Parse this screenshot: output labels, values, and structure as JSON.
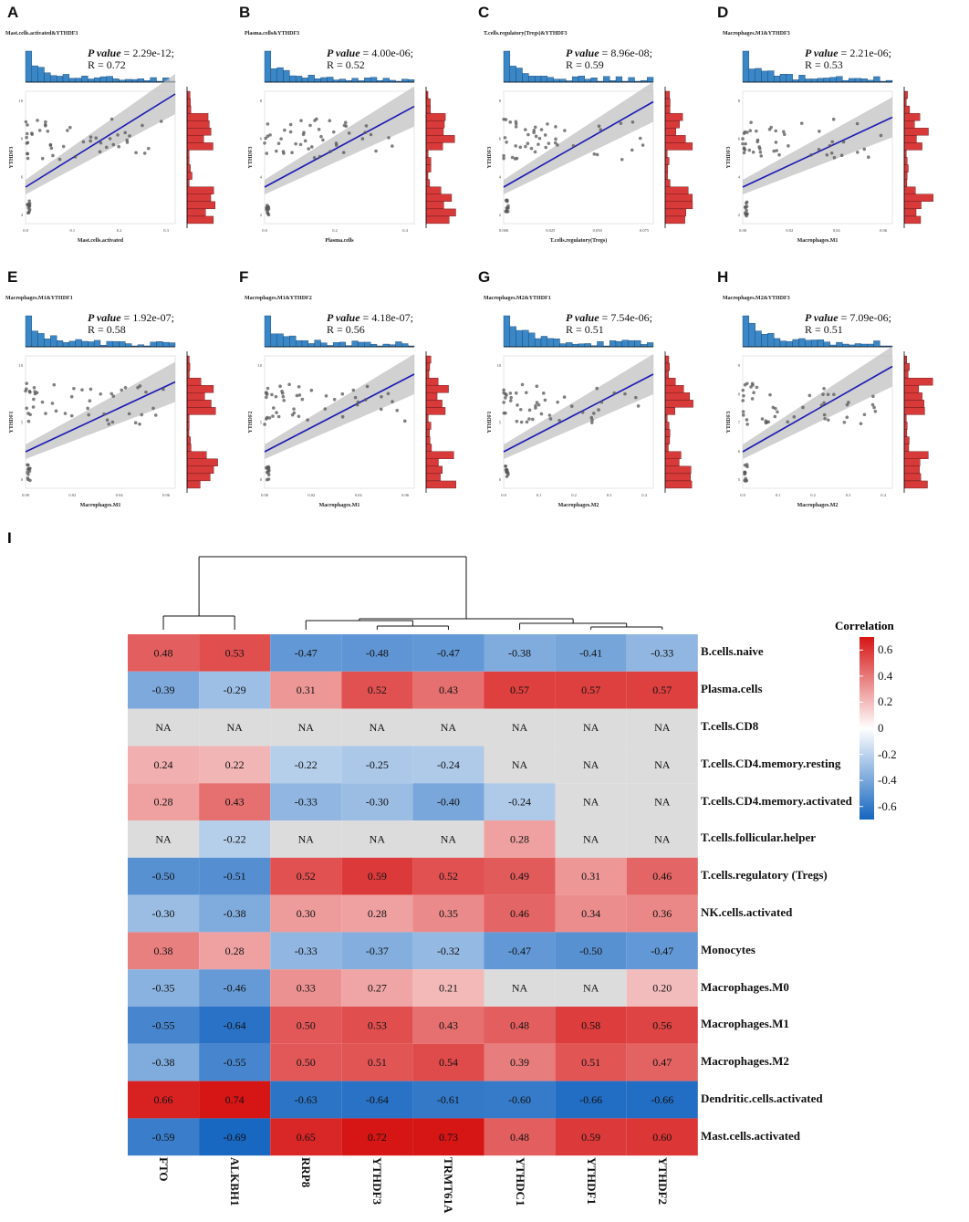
{
  "panels": [
    {
      "label": "A",
      "title": "Mast.cells.activated&YTHDF3",
      "pvalue_label": "P value",
      "pvalue": "2.29e-12",
      "r": "R = 0.72",
      "xlabel": "Mast.cells.activated",
      "ylabel": "YTHDF3",
      "slope": 0.6,
      "x_ticks": [
        "0.0",
        "0.1",
        "0.2",
        "0.3"
      ],
      "y_ticks": [
        "4",
        "6",
        "8",
        "10"
      ]
    },
    {
      "label": "B",
      "title": "Plasma.cells&YTHDF3",
      "pvalue_label": "P value",
      "pvalue": "4.00e-06",
      "r": "R = 0.52",
      "xlabel": "Plasma.cells",
      "ylabel": "YTHDF3",
      "slope": 0.52,
      "x_ticks": [
        "0.0",
        "0.2",
        "0.4"
      ],
      "y_ticks": [
        "2",
        "4",
        "6",
        "8"
      ]
    },
    {
      "label": "C",
      "title": "T.cells.regulatory(Tregs)&YTHDF3",
      "pvalue_label": "P value",
      "pvalue": "8.96e-08",
      "r": "R = 0.59",
      "xlabel": "T.cells.regulatory(Tregs)",
      "ylabel": "YTHDF3",
      "slope": 0.55,
      "x_ticks": [
        "0.000",
        "0.025",
        "0.050",
        "0.075"
      ],
      "y_ticks": [
        "2",
        "4",
        "6",
        "8"
      ]
    },
    {
      "label": "D",
      "title": "Macrophages.M1&YTHDF3",
      "pvalue_label": "P value",
      "pvalue": "2.21e-06",
      "r": "R = 0.53",
      "xlabel": "Macrophages.M1",
      "ylabel": "YTHDF3",
      "slope": 0.45,
      "x_ticks": [
        "0.00",
        "0.02",
        "0.04",
        "0.06"
      ],
      "y_ticks": [
        "2",
        "4",
        "6",
        "8"
      ]
    },
    {
      "label": "E",
      "title": "Macrophages.M1&YTHDF1",
      "pvalue_label": "P value",
      "pvalue": "1.92e-07",
      "r": "R = 0.58",
      "xlabel": "Macrophages.M1",
      "ylabel": "YTHDF1",
      "slope": 0.45,
      "x_ticks": [
        "0.00",
        "0.02",
        "0.04",
        "0.06"
      ],
      "y_ticks": [
        "0",
        "5",
        "10"
      ]
    },
    {
      "label": "F",
      "title": "Macrophages.M1&YTHDF2",
      "pvalue_label": "P value",
      "pvalue": "4.18e-07",
      "r": "R = 0.56",
      "xlabel": "Macrophages.M1",
      "ylabel": "YTHDF2",
      "slope": 0.5,
      "x_ticks": [
        "0.00",
        "0.02",
        "0.04",
        "0.06"
      ],
      "y_ticks": [
        "0",
        "5",
        "10"
      ]
    },
    {
      "label": "G",
      "title": "Macrophages.M2&YTHDF1",
      "pvalue_label": "P value",
      "pvalue": "7.54e-06",
      "r": "R = 0.51",
      "xlabel": "Macrophages.M2",
      "ylabel": "YTHDF1",
      "slope": 0.5,
      "x_ticks": [
        "0.0",
        "0.1",
        "0.2",
        "0.3",
        "0.4"
      ],
      "y_ticks": [
        "0",
        "5",
        "10"
      ]
    },
    {
      "label": "H",
      "title": "Macrophages.M2&YTHDF3",
      "pvalue_label": "P value",
      "pvalue": "7.09e-06",
      "r": "R = 0.51",
      "xlabel": "Macrophages.M2",
      "ylabel": "YTHDF3",
      "slope": 0.55,
      "x_ticks": [
        "0.0",
        "0.1",
        "0.2",
        "0.3",
        "0.4"
      ],
      "y_ticks": [
        "5",
        "6",
        "7",
        "8",
        "9"
      ]
    }
  ],
  "heatmap_label": "I",
  "chart_data": {
    "type": "heatmap",
    "title": "",
    "legend_title": "Correlation",
    "legend_ticks": [
      "0.6",
      "0.4",
      "0.2",
      "0",
      "-0.2",
      "-0.4",
      "-0.6"
    ],
    "color_range": [
      -0.7,
      0.7
    ],
    "colors": {
      "negative": "#1565c0",
      "zero": "#ffffff",
      "positive": "#d61515",
      "na": "#dcdcdc"
    },
    "columns": [
      "FTO",
      "ALKBH1",
      "RRP8",
      "YTHDF3",
      "TRMT61A",
      "YTHDC1",
      "YTHDF1",
      "YTHDF2"
    ],
    "rows": [
      "B.cells.naive",
      "Plasma.cells",
      "T.cells.CD8",
      "T.cells.CD4.memory.resting",
      "T.cells.CD4.memory.activated",
      "T.cells.follicular.helper",
      "T.cells.regulatory (Tregs)",
      "NK.cells.activated",
      "Monocytes",
      "Macrophages.M0",
      "Macrophages.M1",
      "Macrophages.M2",
      "Dendritic.cells.activated",
      "Mast.cells.activated"
    ],
    "values": [
      [
        "0.48",
        "0.53",
        "-0.47",
        "-0.48",
        "-0.47",
        "-0.38",
        "-0.41",
        "-0.33"
      ],
      [
        "-0.39",
        "-0.29",
        "0.31",
        "0.52",
        "0.43",
        "0.57",
        "0.57",
        "0.57"
      ],
      [
        "NA",
        "NA",
        "NA",
        "NA",
        "NA",
        "NA",
        "NA",
        "NA"
      ],
      [
        "0.24",
        "0.22",
        "-0.22",
        "-0.25",
        "-0.24",
        "NA",
        "NA",
        "NA"
      ],
      [
        "0.28",
        "0.43",
        "-0.33",
        "-0.30",
        "-0.40",
        "-0.24",
        "NA",
        "NA"
      ],
      [
        "NA",
        "-0.22",
        "NA",
        "NA",
        "NA",
        "0.28",
        "NA",
        "NA"
      ],
      [
        "-0.50",
        "-0.51",
        "0.52",
        "0.59",
        "0.52",
        "0.49",
        "0.31",
        "0.46"
      ],
      [
        "-0.30",
        "-0.38",
        "0.30",
        "0.28",
        "0.35",
        "0.46",
        "0.34",
        "0.36"
      ],
      [
        "0.38",
        "0.28",
        "-0.33",
        "-0.37",
        "-0.32",
        "-0.47",
        "-0.50",
        "-0.47"
      ],
      [
        "-0.35",
        "-0.46",
        "0.33",
        "0.27",
        "0.21",
        "NA",
        "NA",
        "0.20"
      ],
      [
        "-0.55",
        "-0.64",
        "0.50",
        "0.53",
        "0.43",
        "0.48",
        "0.58",
        "0.56"
      ],
      [
        "-0.38",
        "-0.55",
        "0.50",
        "0.51",
        "0.54",
        "0.39",
        "0.51",
        "0.47"
      ],
      [
        "0.66",
        "0.74",
        "-0.63",
        "-0.64",
        "-0.61",
        "-0.60",
        "-0.66",
        "-0.66"
      ],
      [
        "-0.59",
        "-0.69",
        "0.65",
        "0.72",
        "0.73",
        "0.48",
        "0.59",
        "0.60"
      ]
    ],
    "dendrogram": "columns clustered: (FTO, ALKBH1) vs (RRP8, YTHDF3, TRMT61A, YTHDC1, YTHDF1, YTHDF2)"
  }
}
